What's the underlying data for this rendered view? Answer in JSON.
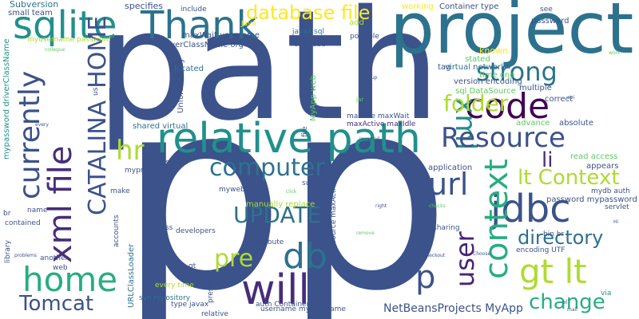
{
  "cloud": {
    "palette": {
      "navy": "#3b528b",
      "indigo": "#472d7b",
      "purple": "#482475",
      "blue": "#2c728e",
      "teal": "#21908d",
      "green": "#27ad81",
      "lightgreen": "#5ec962",
      "lime": "#addc30",
      "yellow": "#fde725"
    },
    "words": [
      {
        "text": "p",
        "color": "#3b528b"
      },
      {
        "text": "p",
        "color": "#3b528b"
      },
      {
        "text": "path",
        "color": "#3b528b"
      },
      {
        "text": "project",
        "color": "#2c728e"
      },
      {
        "text": "relative path",
        "color": "#21908d"
      },
      {
        "text": "sqlite",
        "color": "#21908d"
      },
      {
        "text": "Thank",
        "color": "#2c728e"
      },
      {
        "text": "database file",
        "color": "#fde725"
      },
      {
        "text": "code",
        "color": "#440154"
      },
      {
        "text": "strong",
        "color": "#2c728e"
      },
      {
        "text": "xml",
        "color": "#21908d"
      },
      {
        "text": "folder",
        "color": "#addc30"
      },
      {
        "text": "Resource",
        "color": "#3b528b"
      },
      {
        "text": "currently",
        "color": "#3b528b"
      },
      {
        "text": "xml file",
        "color": "#472d7b"
      },
      {
        "text": "CATALINA_HOME",
        "color": "#3b528b"
      },
      {
        "text": "hr",
        "color": "#addc30"
      },
      {
        "text": "computer",
        "color": "#2c728e"
      },
      {
        "text": "UPDATE",
        "color": "#2c728e"
      },
      {
        "text": "url",
        "color": "#3b528b"
      },
      {
        "text": "jdbc",
        "color": "#3b528b"
      },
      {
        "text": "context",
        "color": "#27ad81"
      },
      {
        "text": "li",
        "color": "#472d7b"
      },
      {
        "text": "lt Context",
        "color": "#addc30"
      },
      {
        "text": "directory",
        "color": "#2c728e"
      },
      {
        "text": "home",
        "color": "#27ad81"
      },
      {
        "text": "pre",
        "color": "#addc30"
      },
      {
        "text": "db",
        "color": "#2c728e"
      },
      {
        "text": "will",
        "color": "#472d7b"
      },
      {
        "text": "p",
        "color": "#3b528b"
      },
      {
        "text": "gt lt",
        "color": "#addc30"
      },
      {
        "text": "user",
        "color": "#482475"
      },
      {
        "text": "change",
        "color": "#27ad81"
      },
      {
        "text": "Tomcat",
        "color": "#3b528b"
      },
      {
        "text": "NetBeansProjects MyApp",
        "color": "#3b528b"
      },
      {
        "text": "Subversion",
        "color": "#2c728e"
      },
      {
        "text": "small team",
        "color": "#3b528b"
      },
      {
        "text": "specifies",
        "color": "#3b528b"
      },
      {
        "text": "include",
        "color": "#3b528b"
      },
      {
        "text": "myusername password",
        "color": "#addc30"
      },
      {
        "text": "maxWait username",
        "color": "#3b528b"
      },
      {
        "text": "driverClassName org",
        "color": "#3b528b"
      },
      {
        "text": "javax sql",
        "color": "#2c728e"
      },
      {
        "text": "ony read",
        "color": "#3b528b"
      },
      {
        "text": "possible",
        "color": "#3b528b"
      },
      {
        "text": "working",
        "color": "#fde725"
      },
      {
        "text": "Container type",
        "color": "#3b528b"
      },
      {
        "text": "see",
        "color": "#3b528b"
      },
      {
        "text": "password",
        "color": "#3b528b"
      },
      {
        "text": "add",
        "color": "#addc30"
      },
      {
        "text": "Java",
        "color": "#fde725"
      },
      {
        "text": "mypassword driverClassName",
        "color": "#21908d"
      },
      {
        "text": "known",
        "color": "#fde725"
      },
      {
        "text": "stated",
        "color": "#5ec962"
      },
      {
        "text": "virtual network",
        "color": "#2c728e"
      },
      {
        "text": "time one",
        "color": "#5ec962"
      },
      {
        "text": "version encoding",
        "color": "#3b528b"
      },
      {
        "text": "sql DataSource",
        "color": "#5ec962"
      },
      {
        "text": "multiple",
        "color": "#3b528b"
      },
      {
        "text": "correct",
        "color": "#3b528b"
      },
      {
        "text": "tag",
        "color": "#3b528b"
      },
      {
        "text": "located",
        "color": "#2c728e"
      },
      {
        "text": "Unfortunately",
        "color": "#3b528b"
      },
      {
        "text": "MyApp web",
        "color": "#5ec962"
      },
      {
        "text": "run",
        "color": "#3b528b"
      },
      {
        "text": "maxIdle maxWait",
        "color": "#3b528b"
      },
      {
        "text": "maxActive maxIdle",
        "color": "#472d7b"
      },
      {
        "text": "advance",
        "color": "#5ec962"
      },
      {
        "text": "absolute",
        "color": "#3b528b"
      },
      {
        "text": "shared virtual",
        "color": "#2c728e"
      },
      {
        "text": "inside",
        "color": "#3b528b"
      },
      {
        "text": "sure",
        "color": "#3b528b"
      },
      {
        "text": "DataSource maxActive",
        "color": "#3b528b"
      },
      {
        "text": "mywebapp",
        "color": "#3b528b"
      },
      {
        "text": "manually replace",
        "color": "#addc30"
      },
      {
        "text": "application",
        "color": "#3b528b"
      },
      {
        "text": "read access",
        "color": "#5ec962"
      },
      {
        "text": "appears",
        "color": "#3b528b"
      },
      {
        "text": "mydb auth",
        "color": "#3b528b"
      },
      {
        "text": "password mypassword",
        "color": "#3b528b"
      },
      {
        "text": "servlet",
        "color": "#3b528b"
      },
      {
        "text": "bin br",
        "color": "#3b528b"
      },
      {
        "text": "sharing",
        "color": "#3b528b"
      },
      {
        "text": "encoding UTF",
        "color": "#3b528b"
      },
      {
        "text": "name",
        "color": "#3b528b"
      },
      {
        "text": "contained",
        "color": "#3b528b"
      },
      {
        "text": "accounts",
        "color": "#3b528b"
      },
      {
        "text": "developers",
        "color": "#3b528b"
      },
      {
        "text": "attribute",
        "color": "#3b528b"
      },
      {
        "text": "class",
        "color": "#3b528b"
      },
      {
        "text": "another",
        "color": "#3b528b"
      },
      {
        "text": "web",
        "color": "#3b528b"
      },
      {
        "text": "every time",
        "color": "#addc30"
      },
      {
        "text": "svn repository",
        "color": "#2c728e"
      },
      {
        "text": "type javax",
        "color": "#3b528b"
      },
      {
        "text": "auth Container",
        "color": "#3b528b"
      },
      {
        "text": "relative",
        "color": "#3b528b"
      },
      {
        "text": "username myusername",
        "color": "#3b528b"
      },
      {
        "text": "use",
        "color": "#3b528b"
      },
      {
        "text": "via",
        "color": "#21908d"
      },
      {
        "text": "myprof",
        "color": "#3b528b"
      },
      {
        "text": "make",
        "color": "#3b528b"
      },
      {
        "text": "URLClassLoader",
        "color": "#2c728e"
      },
      {
        "text": "present",
        "color": "#3b528b"
      },
      {
        "text": "gt",
        "color": "#3b528b"
      },
      {
        "text": "us",
        "color": "#3b528b"
      },
      {
        "text": "file",
        "color": "#3b528b"
      },
      {
        "text": "br",
        "color": "#3b528b"
      },
      {
        "text": "library",
        "color": "#3b528b"
      },
      {
        "text": "problems",
        "color": "#3b528b"
      },
      {
        "text": "collegue",
        "color": "#5ec962"
      },
      {
        "text": "group",
        "color": "#3b528b"
      },
      {
        "text": "jar",
        "color": "#5ec962"
      },
      {
        "text": "api",
        "color": "#3b528b"
      },
      {
        "text": "work",
        "color": "#5ec962"
      },
      {
        "text": "javamail",
        "color": "#3b528b"
      },
      {
        "text": "every",
        "color": "#3b528b"
      },
      {
        "text": "click",
        "color": "#5ec962"
      },
      {
        "text": "right",
        "color": "#3b528b"
      },
      {
        "text": "checks",
        "color": "#5ec962"
      },
      {
        "text": "Hi",
        "color": "#3b528b"
      },
      {
        "text": "remove",
        "color": "#5ec962"
      },
      {
        "text": "checkout",
        "color": "#3b528b"
      },
      {
        "text": "Choose",
        "color": "#3b528b"
      },
      {
        "text": "mail",
        "color": "#3b528b"
      },
      {
        "text": "ol",
        "color": "#3b528b"
      }
    ]
  }
}
